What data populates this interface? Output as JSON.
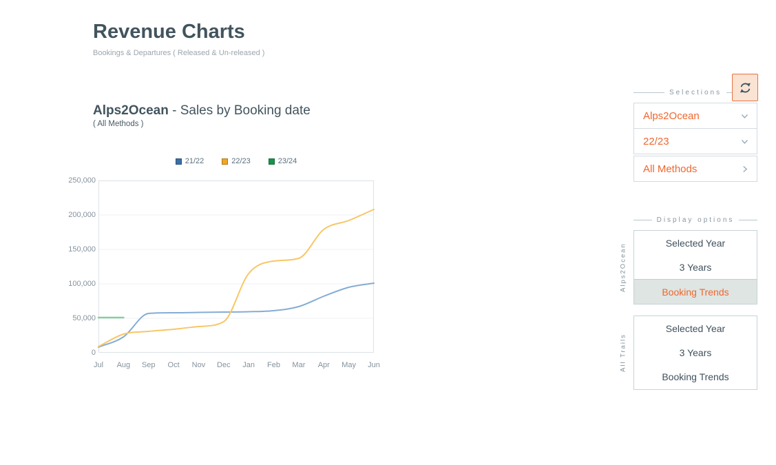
{
  "page": {
    "title": "Revenue Charts",
    "subtitle": "Bookings & Departures ( Released & Un-released )"
  },
  "chart": {
    "title_bold": "Alps2Ocean",
    "title_rest": " - Sales by Booking date",
    "subtitle": "( All Methods )"
  },
  "chart_data": {
    "type": "line",
    "title": "Alps2Ocean - Sales by Booking date ( All Methods )",
    "categories": [
      "Jul",
      "Aug",
      "Sep",
      "Oct",
      "Nov",
      "Dec",
      "Jan",
      "Feb",
      "Mar",
      "Apr",
      "May",
      "Jun"
    ],
    "series": [
      {
        "name": "21/22",
        "color": "#3a70a8",
        "line_color": "#84acd4",
        "line_width": 2,
        "values": [
          8000,
          23000,
          57000,
          58000,
          58500,
          59000,
          59500,
          61000,
          67000,
          82000,
          95000,
          101000
        ]
      },
      {
        "name": "22/23",
        "color": "#f2a71e",
        "line_color": "#f8c666",
        "line_width": 2,
        "values": [
          9000,
          27000,
          31000,
          34000,
          38000,
          45000,
          115000,
          133000,
          137000,
          179000,
          192000,
          208000
        ]
      },
      {
        "name": "23/24",
        "color": "#16954c",
        "line_color": "#87cda2",
        "line_width": 2.5,
        "values": [
          51000,
          51000,
          null,
          null,
          null,
          null,
          null,
          null,
          null,
          null,
          null,
          null
        ]
      }
    ],
    "ylim": [
      0,
      250000
    ],
    "yticks": [
      0,
      50000,
      100000,
      150000,
      200000,
      250000
    ],
    "ytick_labels": [
      "0",
      "50,000",
      "100,000",
      "150,000",
      "200,000",
      "250,000"
    ],
    "grid": true,
    "legend_position": "top"
  },
  "sidebar": {
    "selections_label": "Selections",
    "refresh_icon": "sync-icon",
    "dropdowns": [
      {
        "label": "Alps2Ocean",
        "chevron": "down",
        "icon": "chevron-down-icon"
      },
      {
        "label": "22/23",
        "chevron": "down",
        "icon": "chevron-down-icon"
      },
      {
        "label": "All Methods",
        "chevron": "right",
        "icon": "chevron-right-icon"
      }
    ],
    "display_options_label": "Display options",
    "groups": [
      {
        "vertical_label": "Alps2Ocean",
        "options": [
          {
            "label": "Selected Year",
            "selected": false
          },
          {
            "label": "3 Years",
            "selected": false
          },
          {
            "label": "Booking Trends",
            "selected": true
          }
        ]
      },
      {
        "vertical_label": "All Trails",
        "options": [
          {
            "label": "Selected Year",
            "selected": false
          },
          {
            "label": "3 Years",
            "selected": false
          },
          {
            "label": "Booking Trends",
            "selected": false
          }
        ]
      }
    ]
  },
  "colors": {
    "accent_orange": "#f0662d",
    "dark_slate": "#42545e",
    "selected_option_bg": "#dee5e3",
    "refresh_button_bg": "#fbe3d4",
    "refresh_button_border": "#e8713c",
    "axis_text": "#85929c",
    "gridline": "#eef1f3"
  }
}
